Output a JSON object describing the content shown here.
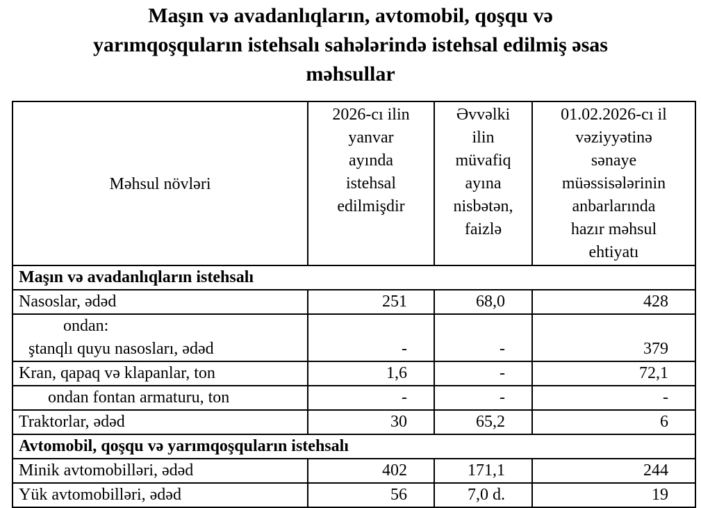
{
  "title": "Maşın və avadanlıqların, avtomobil, qoşqu və yarımqoşquların istehsalı sahələrində istehsal edilmiş əsas məhsullar",
  "title_lines": [
    "Maşın və avadanlıqların, avtomobil, qoşqu və",
    "yarımqoşquların istehsalı sahələrində istehsal edilmiş əsas",
    "məhsullar"
  ],
  "headers": {
    "product": "Məhsul növləri",
    "produced": [
      "2026-cı ilin",
      "yanvar",
      "ayında",
      "istehsal",
      "edilmişdir"
    ],
    "pct": [
      "Əvvəlki",
      "ilin",
      "müvafiq",
      "ayına",
      "nisbətən,",
      "faizlə"
    ],
    "stock": [
      "01.02.2026-cı il",
      "vəziyyətinə",
      "sənaye",
      "müəssisələrinin",
      "anbarlarında",
      "hazır məhsul",
      "ehtiyatı"
    ]
  },
  "sections": [
    {
      "title": "Maşın və avadanlıqların istehsalı"
    },
    {
      "title": "Avtomobil, qoşqu və yarımqoşquların istehsalı"
    }
  ],
  "rows": [
    {
      "name": "Nasoslar, ədəd",
      "produced": "251",
      "pct": "68,0",
      "stock": "428"
    },
    {
      "pre": "ondan:",
      "name": "ştanqlı quyu nasosları, ədəd",
      "produced": "-",
      "pct": "-",
      "stock": "379"
    },
    {
      "name": "Kran, qapaq və klapanlar, ton",
      "produced": "1,6",
      "pct": "-",
      "stock": "72,1"
    },
    {
      "name": "ondan fontan armaturu, ton",
      "produced": "-",
      "pct": "-",
      "stock": "-"
    },
    {
      "name": "Traktorlar, ədəd",
      "produced": "30",
      "pct": "65,2",
      "stock": "6"
    },
    {
      "name": "Minik avtomobilləri, ədəd",
      "produced": "402",
      "pct": "171,1",
      "stock": "244"
    },
    {
      "name": "Yük avtomobilləri, ədəd",
      "produced": "56",
      "pct": "7,0 d.",
      "stock": "19"
    }
  ]
}
